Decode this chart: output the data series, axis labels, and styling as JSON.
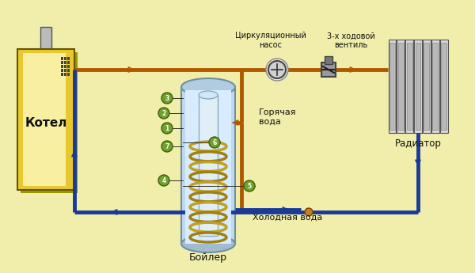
{
  "bg_color": "#f0eeaa",
  "pipe_hot_color": "#b05a00",
  "pipe_cold_color": "#1a3a9a",
  "boiler_body_color": "#e8c830",
  "boiler_body_color2": "#f8f0a0",
  "boiler_stroke": "#665500",
  "tank_body_color": "#c0d8f0",
  "tank_inner_color": "#d8ecff",
  "tank_stroke": "#7090a0",
  "coil_color_a": "#c0a020",
  "coil_color_b": "#a08010",
  "radiator_color": "#cccccc",
  "radiator_stroke": "#555555",
  "numbered_circle_color": "#70a030",
  "numbered_circle_stroke": "#406000",
  "text_kotel": "Котел",
  "text_radiator": "Радиатор",
  "text_boiler": "Бойлер",
  "text_hot_water": "Горячая\nвода",
  "text_cold_water": "Холодная вода",
  "text_pump": "Циркуляционный\nнасос",
  "text_valve": "3-х ходовой\nвентиль"
}
